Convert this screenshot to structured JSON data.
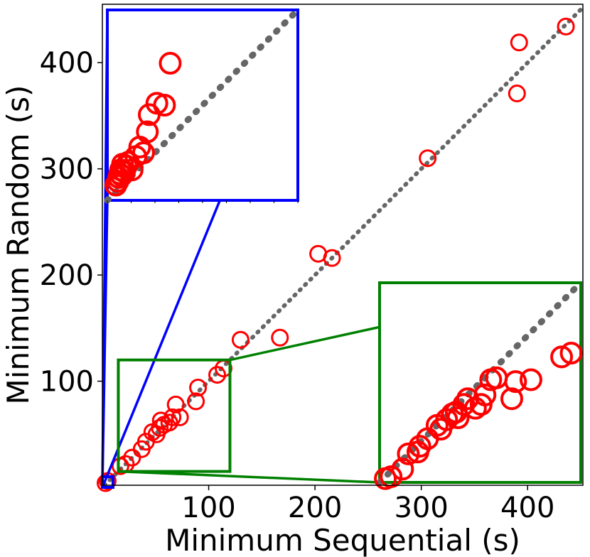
{
  "chart_data": {
    "type": "scatter",
    "title": "",
    "xlabel": "Minimum Sequential (s)",
    "ylabel": "Minimum Random (s)",
    "xlim": [
      0,
      452
    ],
    "ylim": [
      2,
      455
    ],
    "x_ticks": [
      100,
      200,
      300,
      400
    ],
    "y_ticks": [
      100,
      200,
      300,
      400
    ],
    "marker": "open-circle",
    "marker_color": "#ff0000",
    "diagonal_color": "#666666",
    "grid": false,
    "points": [
      {
        "x": 3,
        "y": 4
      },
      {
        "x": 5,
        "y": 6
      },
      {
        "x": 17,
        "y": 20
      },
      {
        "x": 22,
        "y": 22
      },
      {
        "x": 28,
        "y": 28
      },
      {
        "x": 37,
        "y": 36
      },
      {
        "x": 41,
        "y": 43
      },
      {
        "x": 47,
        "y": 52
      },
      {
        "x": 51,
        "y": 50
      },
      {
        "x": 54,
        "y": 56
      },
      {
        "x": 55,
        "y": 63
      },
      {
        "x": 58,
        "y": 59
      },
      {
        "x": 63,
        "y": 61
      },
      {
        "x": 66,
        "y": 66
      },
      {
        "x": 69,
        "y": 78
      },
      {
        "x": 73,
        "y": 66
      },
      {
        "x": 88,
        "y": 81
      },
      {
        "x": 90,
        "y": 94
      },
      {
        "x": 108,
        "y": 106
      },
      {
        "x": 114,
        "y": 112
      },
      {
        "x": 130,
        "y": 139
      },
      {
        "x": 167,
        "y": 141
      },
      {
        "x": 203,
        "y": 220
      },
      {
        "x": 216,
        "y": 216
      },
      {
        "x": 306,
        "y": 310
      },
      {
        "x": 390,
        "y": 371
      },
      {
        "x": 392,
        "y": 419
      },
      {
        "x": 436,
        "y": 434
      }
    ],
    "insets": [
      {
        "color": "#0000ff",
        "source_x": [
          0,
          10
        ],
        "source_y": [
          0,
          10
        ],
        "points": [
          {
            "x": 0.45,
            "y": 0.8
          },
          {
            "x": 0.55,
            "y": 1.0
          },
          {
            "x": 0.6,
            "y": 1.2
          },
          {
            "x": 0.65,
            "y": 1.4
          },
          {
            "x": 0.7,
            "y": 1.6
          },
          {
            "x": 0.75,
            "y": 1.3
          },
          {
            "x": 0.8,
            "y": 1.9
          },
          {
            "x": 0.9,
            "y": 1.5
          },
          {
            "x": 1.0,
            "y": 1.8
          },
          {
            "x": 1.1,
            "y": 2.0
          },
          {
            "x": 1.3,
            "y": 1.6
          },
          {
            "x": 1.5,
            "y": 2.3
          },
          {
            "x": 1.7,
            "y": 2.8
          },
          {
            "x": 1.9,
            "y": 2.5
          },
          {
            "x": 2.1,
            "y": 3.6
          },
          {
            "x": 2.2,
            "y": 4.5
          },
          {
            "x": 2.6,
            "y": 5.1
          },
          {
            "x": 3.0,
            "y": 5.0
          },
          {
            "x": 3.3,
            "y": 7.2
          }
        ]
      },
      {
        "color": "#008000",
        "source_x": [
          15,
          120
        ],
        "source_y": [
          15,
          120
        ],
        "points": [
          {
            "x": 18,
            "y": 17
          },
          {
            "x": 21,
            "y": 18
          },
          {
            "x": 27,
            "y": 22
          },
          {
            "x": 30,
            "y": 30
          },
          {
            "x": 35,
            "y": 31
          },
          {
            "x": 36,
            "y": 34
          },
          {
            "x": 40,
            "y": 38
          },
          {
            "x": 45,
            "y": 45
          },
          {
            "x": 47,
            "y": 43
          },
          {
            "x": 50,
            "y": 48
          },
          {
            "x": 53,
            "y": 51
          },
          {
            "x": 55,
            "y": 52
          },
          {
            "x": 56,
            "y": 49
          },
          {
            "x": 59,
            "y": 56
          },
          {
            "x": 61,
            "y": 59
          },
          {
            "x": 65,
            "y": 54
          },
          {
            "x": 68,
            "y": 56
          },
          {
            "x": 70,
            "y": 61
          },
          {
            "x": 73,
            "y": 69
          },
          {
            "x": 76,
            "y": 70
          },
          {
            "x": 84,
            "y": 59
          },
          {
            "x": 86,
            "y": 68
          },
          {
            "x": 94,
            "y": 69
          },
          {
            "x": 110,
            "y": 81
          },
          {
            "x": 115,
            "y": 83
          }
        ]
      }
    ]
  }
}
